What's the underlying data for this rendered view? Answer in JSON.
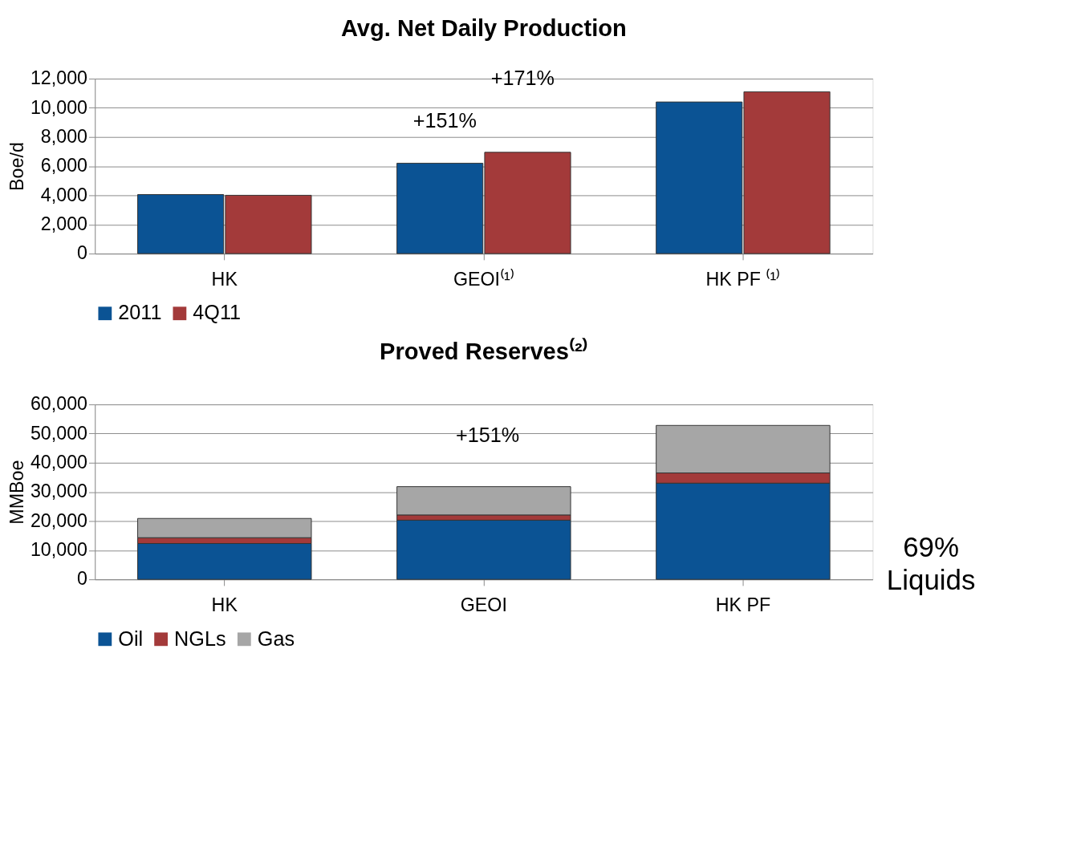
{
  "chart_data": [
    {
      "type": "bar",
      "title": "Avg. Net Daily Production",
      "ylabel": "Boe/d",
      "categories": [
        "HK",
        "GEOI⁽¹⁾",
        "HK PF ⁽¹⁾"
      ],
      "series": [
        {
          "name": "2011",
          "color": "#0b5394",
          "values": [
            4050,
            6200,
            10400
          ]
        },
        {
          "name": "4Q11",
          "color": "#a33a3a",
          "values": [
            4000,
            6950,
            11100
          ]
        }
      ],
      "ylim": [
        0,
        12000
      ],
      "yticks": [
        {
          "value": 0,
          "label": "0"
        },
        {
          "value": 2000,
          "label": "2,000"
        },
        {
          "value": 4000,
          "label": "4,000"
        },
        {
          "value": 6000,
          "label": "6,000"
        },
        {
          "value": 8000,
          "label": "8,000"
        },
        {
          "value": 10000,
          "label": "10,000"
        },
        {
          "value": 12000,
          "label": "12,000"
        }
      ],
      "grid": "y",
      "legend": "bottom",
      "annotations": [
        "+171%",
        "+151%"
      ]
    },
    {
      "type": "bar",
      "title": "Proved Reserves⁽²⁾",
      "ylabel": "MMBoe",
      "categories": [
        "HK",
        "GEOI",
        "HK PF"
      ],
      "stacked": true,
      "series": [
        {
          "name": "Oil",
          "color": "#0b5394",
          "values": [
            12300,
            20300,
            33000
          ]
        },
        {
          "name": "NGLs",
          "color": "#a33a3a",
          "values": [
            2000,
            1800,
            3500
          ]
        },
        {
          "name": "Gas",
          "color": "#a6a6a6",
          "values": [
            6600,
            9700,
            16300
          ]
        }
      ],
      "ylim": [
        0,
        60000
      ],
      "yticks": [
        {
          "value": 0,
          "label": "0"
        },
        {
          "value": 10000,
          "label": "10,000"
        },
        {
          "value": 20000,
          "label": "20,000"
        },
        {
          "value": 30000,
          "label": "30,000"
        },
        {
          "value": 40000,
          "label": "40,000"
        },
        {
          "value": 50000,
          "label": "50,000"
        },
        {
          "value": 60000,
          "label": "60,000"
        }
      ],
      "grid": "y",
      "legend": "bottom",
      "annotations": [
        "+151%",
        "69%\nLiquids"
      ]
    }
  ]
}
